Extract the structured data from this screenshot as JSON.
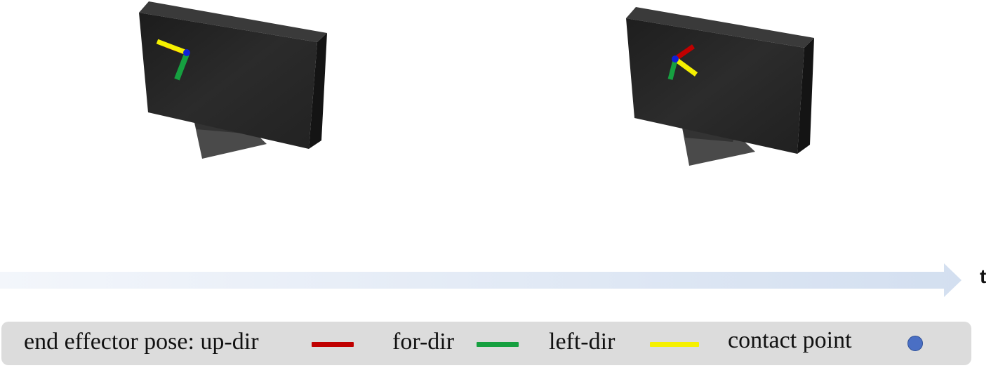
{
  "timeline": {
    "axis_label": "t"
  },
  "legend": {
    "title": "end effector pose: up-dir",
    "for_label": "for-dir",
    "left_label": "left-dir",
    "contact_label": "contact point"
  },
  "colors": {
    "up_dir": "#c00000",
    "for_dir": "#16a040",
    "left_dir": "#f5f000",
    "contact_point": "#4a6fc4",
    "monitor_body": "#262626",
    "monitor_stand": "#4a4a4a"
  }
}
